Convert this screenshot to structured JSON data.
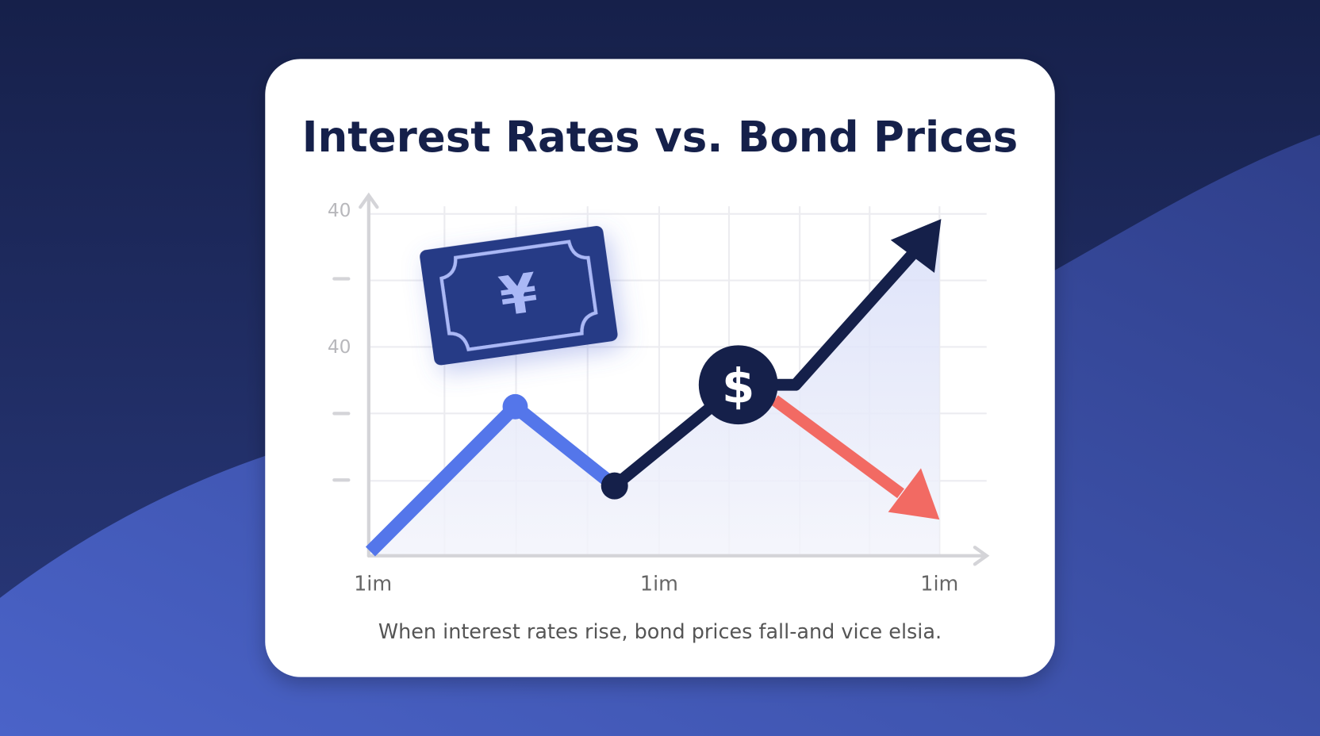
{
  "card": {
    "title": "Interest Rates vs. Bond Prices",
    "y_axis_labels": [
      "40",
      "40"
    ],
    "x_axis_labels": [
      "1im",
      "1im",
      "1im"
    ],
    "icons": {
      "yen": "¥",
      "dollar": "$"
    },
    "caption": "When interest rates rise, bond prices fall-and vice elsia."
  }
}
